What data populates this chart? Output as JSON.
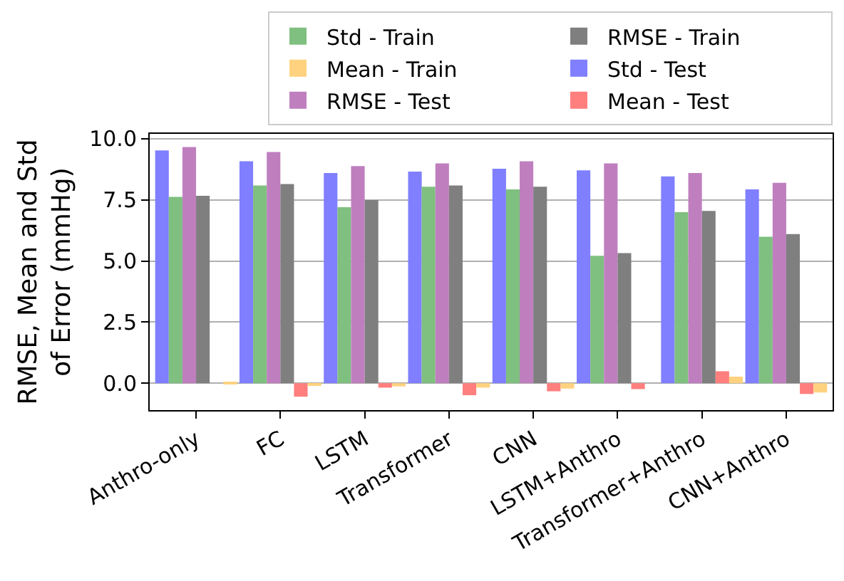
{
  "chart_data": {
    "type": "bar",
    "ylabel": "RMSE, Mean and Std\nof Error (mmHg)",
    "categories": [
      "Anthro-only",
      "FC",
      "LSTM",
      "Transformer",
      "CNN",
      "LSTM+Anthro",
      "Transformer+Anthro",
      "CNN+Anthro"
    ],
    "series": [
      {
        "name": "Std - Test",
        "color": "#7f7fff",
        "values": [
          9.52,
          9.08,
          8.6,
          8.66,
          8.77,
          8.71,
          8.46,
          7.93
        ]
      },
      {
        "name": "Std - Train",
        "color": "#7fbf7f",
        "values": [
          7.62,
          8.09,
          7.2,
          8.04,
          7.93,
          5.21,
          7.0,
          5.99
        ]
      },
      {
        "name": "RMSE - Test",
        "color": "#bf7fbf",
        "values": [
          9.66,
          9.46,
          8.88,
          8.99,
          9.08,
          8.99,
          8.6,
          8.2
        ]
      },
      {
        "name": "RMSE - Train",
        "color": "#7f7f7f",
        "values": [
          7.67,
          8.15,
          7.49,
          8.09,
          8.04,
          5.32,
          7.05,
          6.1
        ]
      },
      {
        "name": "Mean - Test",
        "color": "#ff7f7f",
        "values": [
          0.0,
          -0.55,
          -0.18,
          -0.49,
          -0.33,
          -0.24,
          0.49,
          -0.44
        ]
      },
      {
        "name": "Mean - Train",
        "color": "#ffd27f",
        "values": [
          0.05,
          -0.07,
          -0.13,
          -0.18,
          -0.22,
          0.0,
          0.27,
          -0.38
        ]
      }
    ],
    "ylim": [
      -1.1,
      10.2
    ],
    "yticks": [
      {
        "value": 0,
        "label": "0.0"
      },
      {
        "value": 2.5,
        "label": "2.5"
      },
      {
        "value": 5,
        "label": "5.0"
      },
      {
        "value": 7.5,
        "label": "7.5"
      },
      {
        "value": 10,
        "label": "10.0"
      }
    ],
    "grid": "y",
    "legend": "top"
  }
}
